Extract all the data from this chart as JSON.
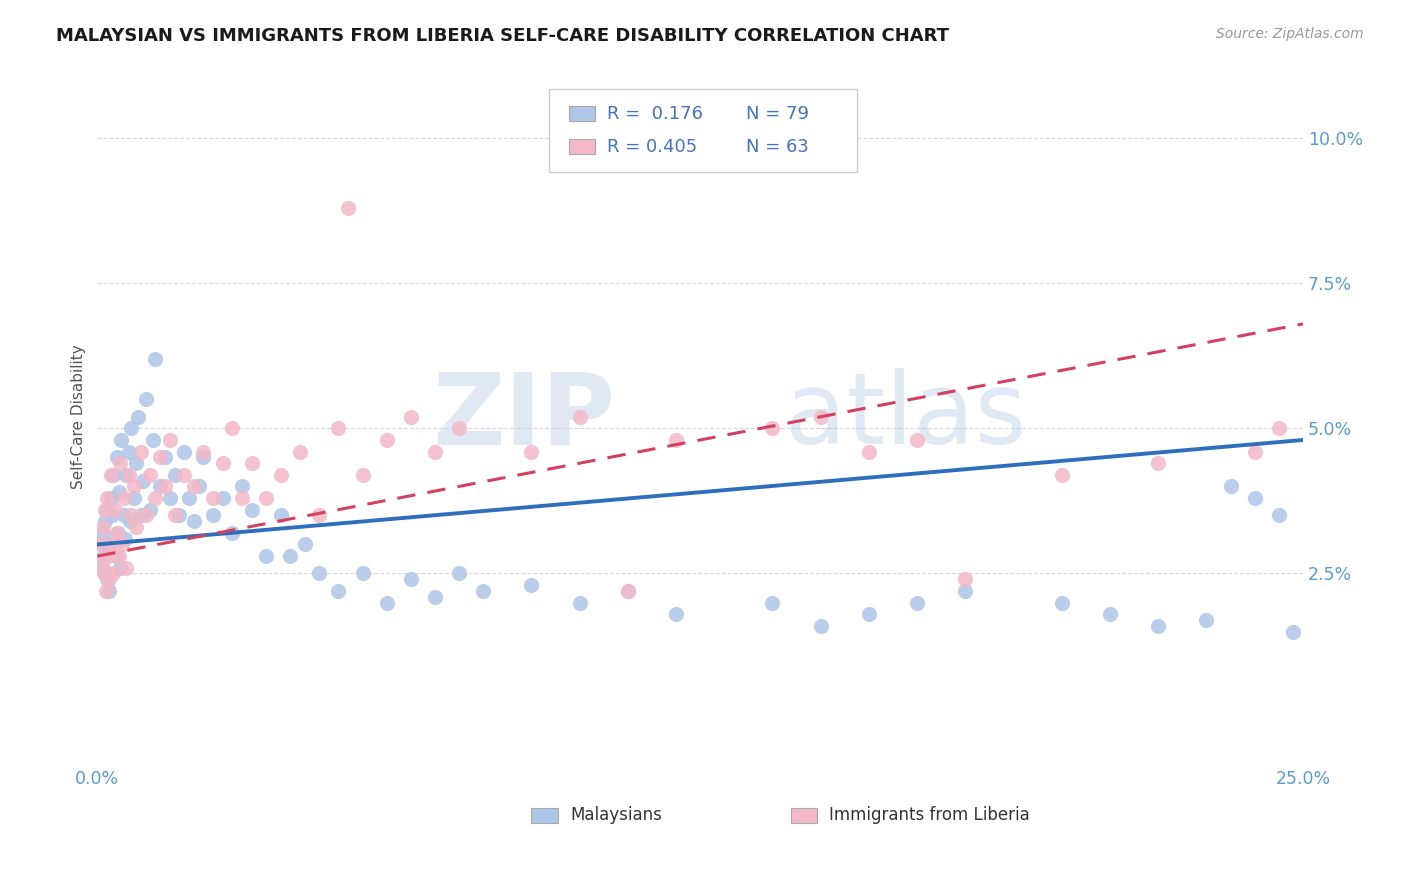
{
  "title": "MALAYSIAN VS IMMIGRANTS FROM LIBERIA SELF-CARE DISABILITY CORRELATION CHART",
  "source": "Source: ZipAtlas.com",
  "ylabel": "Self-Care Disability",
  "xlim": [
    0.0,
    0.25
  ],
  "ylim": [
    -0.008,
    0.112
  ],
  "xticks": [
    0.0,
    0.05,
    0.1,
    0.15,
    0.2,
    0.25
  ],
  "xticklabels": [
    "0.0%",
    "",
    "",
    "",
    "",
    "25.0%"
  ],
  "yticks": [
    0.025,
    0.05,
    0.075,
    0.1
  ],
  "yticklabels": [
    "2.5%",
    "5.0%",
    "7.5%",
    "10.0%"
  ],
  "blue_color": "#aec6e8",
  "pink_color": "#f4b8c8",
  "blue_line_color": "#2e6fbd",
  "pink_line_color": "#d44060",
  "r1": 0.176,
  "n1": 79,
  "r2": 0.405,
  "n2": 63,
  "legend_text_color": "#4472c4",
  "watermark_color": "#c8d8ea",
  "title_color": "#1a1a1a",
  "source_color": "#999999",
  "ylabel_color": "#555555",
  "tick_color": "#5b9bd5",
  "grid_color": "#cccccc",
  "mal_x": [
    0.0008,
    0.001,
    0.0012,
    0.0013,
    0.0015,
    0.0016,
    0.0018,
    0.002,
    0.0022,
    0.0025,
    0.0028,
    0.003,
    0.0032,
    0.0035,
    0.0038,
    0.004,
    0.0042,
    0.0045,
    0.0048,
    0.005,
    0.0055,
    0.0058,
    0.006,
    0.0065,
    0.0068,
    0.007,
    0.0075,
    0.008,
    0.0085,
    0.009,
    0.0095,
    0.01,
    0.011,
    0.0115,
    0.012,
    0.013,
    0.014,
    0.015,
    0.016,
    0.017,
    0.018,
    0.019,
    0.02,
    0.021,
    0.022,
    0.024,
    0.026,
    0.028,
    0.03,
    0.032,
    0.035,
    0.038,
    0.04,
    0.043,
    0.046,
    0.05,
    0.055,
    0.06,
    0.065,
    0.07,
    0.075,
    0.08,
    0.09,
    0.1,
    0.11,
    0.12,
    0.14,
    0.15,
    0.16,
    0.17,
    0.18,
    0.2,
    0.21,
    0.22,
    0.23,
    0.235,
    0.24,
    0.245,
    0.248
  ],
  "mal_y": [
    0.03,
    0.026,
    0.032,
    0.028,
    0.034,
    0.025,
    0.036,
    0.024,
    0.03,
    0.022,
    0.038,
    0.035,
    0.042,
    0.03,
    0.028,
    0.045,
    0.032,
    0.039,
    0.026,
    0.048,
    0.035,
    0.031,
    0.042,
    0.046,
    0.034,
    0.05,
    0.038,
    0.044,
    0.052,
    0.035,
    0.041,
    0.055,
    0.036,
    0.048,
    0.062,
    0.04,
    0.045,
    0.038,
    0.042,
    0.035,
    0.046,
    0.038,
    0.034,
    0.04,
    0.045,
    0.035,
    0.038,
    0.032,
    0.04,
    0.036,
    0.028,
    0.035,
    0.028,
    0.03,
    0.025,
    0.022,
    0.025,
    0.02,
    0.024,
    0.021,
    0.025,
    0.022,
    0.023,
    0.02,
    0.022,
    0.018,
    0.02,
    0.016,
    0.018,
    0.02,
    0.022,
    0.02,
    0.018,
    0.016,
    0.017,
    0.04,
    0.038,
    0.035,
    0.015
  ],
  "lib_x": [
    0.0008,
    0.001,
    0.0012,
    0.0014,
    0.0016,
    0.0018,
    0.002,
    0.0022,
    0.0025,
    0.0028,
    0.003,
    0.0033,
    0.0036,
    0.004,
    0.0044,
    0.0048,
    0.0052,
    0.0056,
    0.006,
    0.0065,
    0.007,
    0.0075,
    0.008,
    0.009,
    0.01,
    0.011,
    0.012,
    0.013,
    0.014,
    0.015,
    0.016,
    0.018,
    0.02,
    0.022,
    0.024,
    0.026,
    0.028,
    0.03,
    0.032,
    0.035,
    0.038,
    0.042,
    0.046,
    0.05,
    0.055,
    0.06,
    0.065,
    0.07,
    0.075,
    0.09,
    0.1,
    0.12,
    0.14,
    0.15,
    0.16,
    0.17,
    0.2,
    0.22,
    0.24,
    0.245,
    0.052,
    0.11,
    0.18
  ],
  "lib_y": [
    0.03,
    0.027,
    0.033,
    0.025,
    0.036,
    0.022,
    0.038,
    0.028,
    0.024,
    0.042,
    0.03,
    0.025,
    0.036,
    0.032,
    0.028,
    0.044,
    0.03,
    0.038,
    0.026,
    0.042,
    0.035,
    0.04,
    0.033,
    0.046,
    0.035,
    0.042,
    0.038,
    0.045,
    0.04,
    0.048,
    0.035,
    0.042,
    0.04,
    0.046,
    0.038,
    0.044,
    0.05,
    0.038,
    0.044,
    0.038,
    0.042,
    0.046,
    0.035,
    0.05,
    0.042,
    0.048,
    0.052,
    0.046,
    0.05,
    0.046,
    0.052,
    0.048,
    0.05,
    0.052,
    0.046,
    0.048,
    0.042,
    0.044,
    0.046,
    0.05,
    0.088,
    0.022,
    0.024
  ]
}
